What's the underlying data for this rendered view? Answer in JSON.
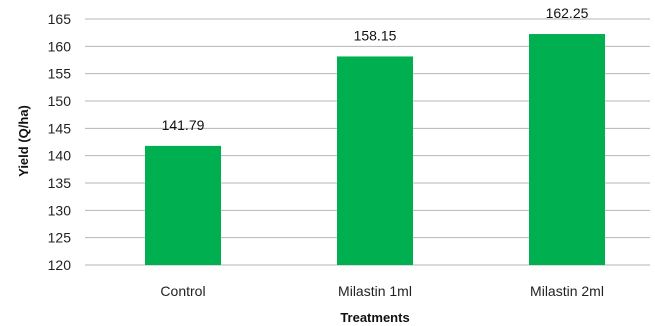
{
  "chart_data": {
    "type": "bar",
    "categories": [
      "Control",
      "Milastin 1ml",
      "Milastin 2ml"
    ],
    "values": [
      141.79,
      158.15,
      162.25
    ],
    "value_labels": [
      "141.79",
      "158.15",
      "162.25"
    ],
    "title": "",
    "xlabel": "Treatments",
    "ylabel": "Yield (Q/ha)",
    "ylim": [
      120,
      165
    ],
    "yticks": [
      120,
      125,
      130,
      135,
      140,
      145,
      150,
      155,
      160,
      165
    ],
    "grid": true,
    "legend": "none",
    "bar_color": "#00b050"
  }
}
